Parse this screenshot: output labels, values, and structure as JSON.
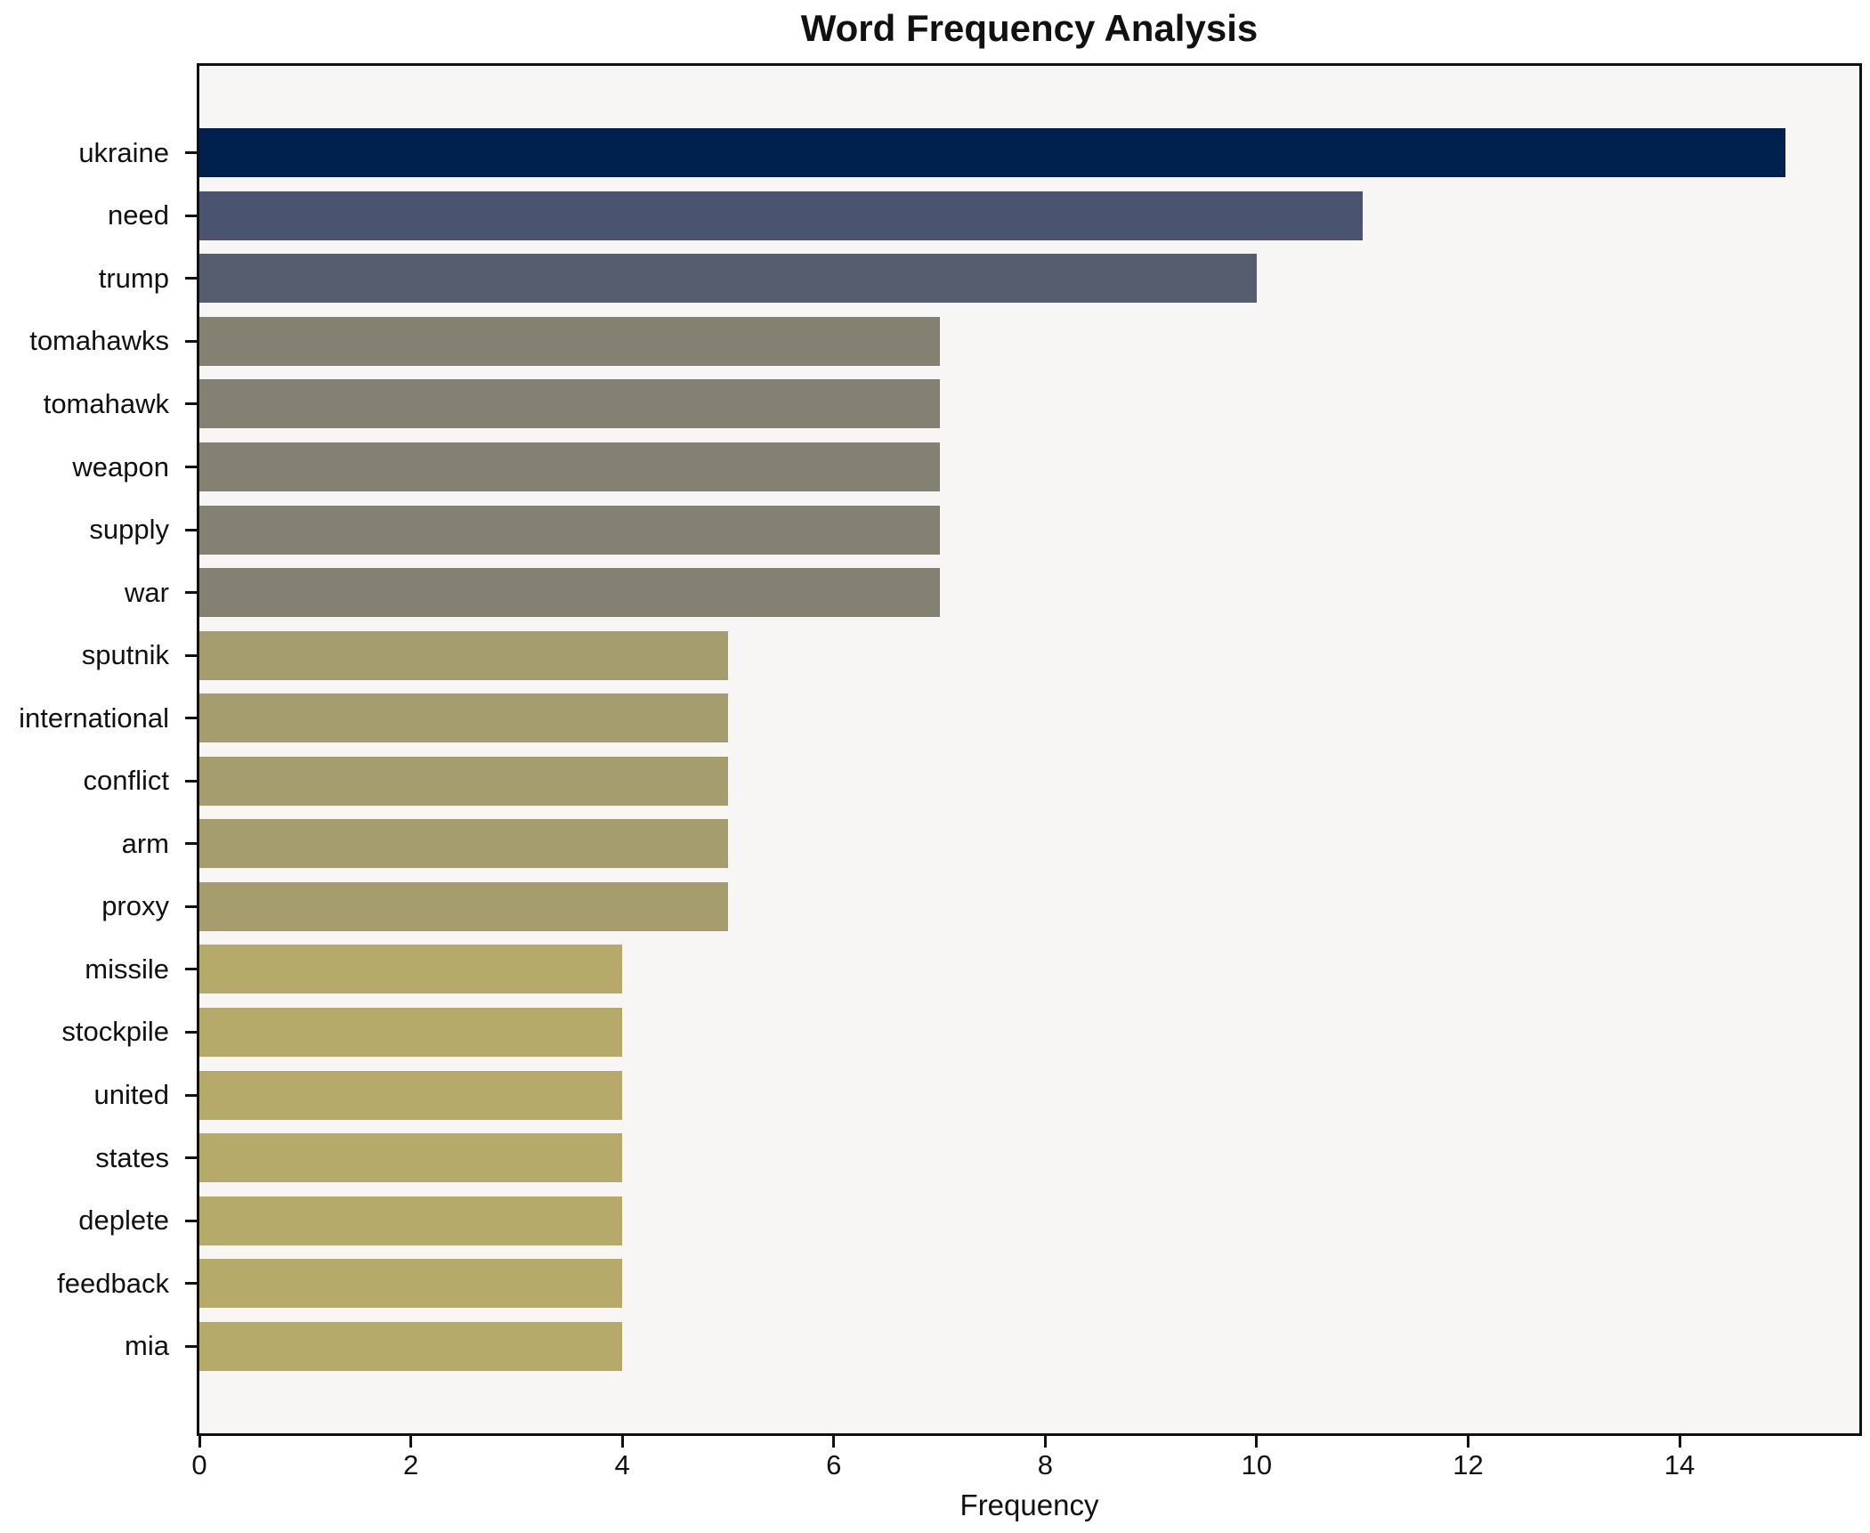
{
  "title": "Word Frequency Analysis",
  "chart_data": {
    "type": "bar",
    "orientation": "horizontal",
    "title": "Word Frequency Analysis",
    "xlabel": "Frequency",
    "ylabel": "",
    "xlim": [
      0,
      15.7
    ],
    "xticks": [
      0,
      2,
      4,
      6,
      8,
      10,
      12,
      14
    ],
    "grid": false,
    "legend": false,
    "plot_background": "#f7f6f4",
    "figure_background": "#ffffff",
    "spine_color": "#111111",
    "categories": [
      "ukraine",
      "need",
      "trump",
      "tomahawks",
      "tomahawk",
      "weapon",
      "supply",
      "war",
      "sputnik",
      "international",
      "conflict",
      "arm",
      "proxy",
      "missile",
      "stockpile",
      "united",
      "states",
      "deplete",
      "feedback",
      "mia"
    ],
    "values": [
      15,
      11,
      10,
      7,
      7,
      7,
      7,
      7,
      5,
      5,
      5,
      5,
      5,
      4,
      4,
      4,
      4,
      4,
      4,
      4
    ],
    "bar_colors": [
      "#00204d",
      "#4a5470",
      "#565d6e",
      "#848172",
      "#848172",
      "#848172",
      "#848172",
      "#848172",
      "#a69d6f",
      "#a69d6f",
      "#a69d6f",
      "#a69d6f",
      "#a69d6f",
      "#b5aa6a",
      "#b5aa6a",
      "#b5aa6a",
      "#b5aa6a",
      "#b5aa6a",
      "#b5aa6a",
      "#b5aa6a"
    ]
  }
}
